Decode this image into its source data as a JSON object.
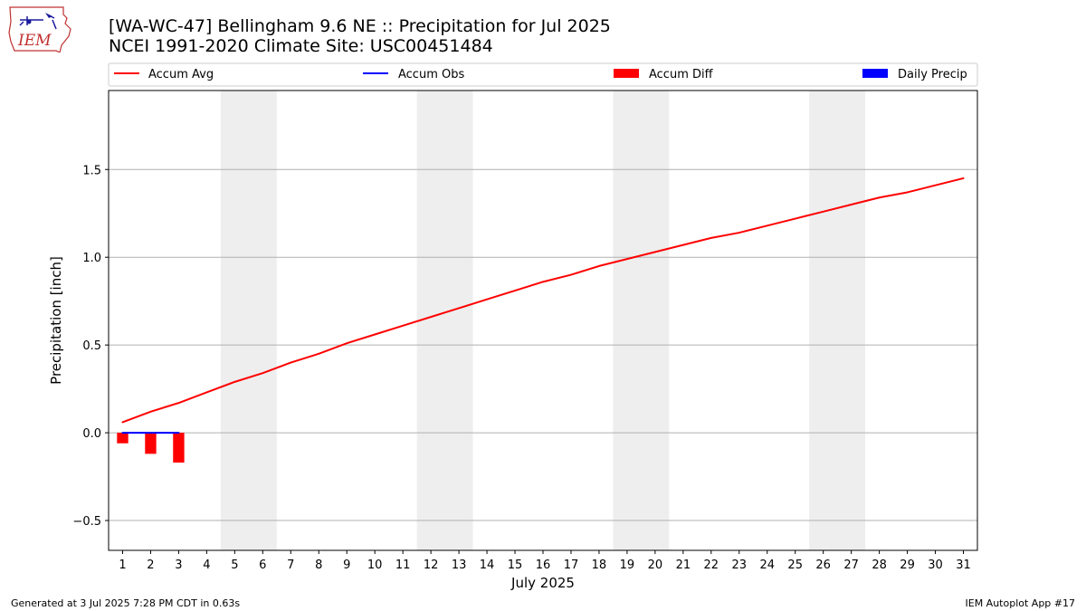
{
  "header": {
    "title_line1": "[WA-WC-47] Bellingham 9.6 NE :: Precipitation for Jul 2025",
    "title_line2": "NCEI 1991-2020 Climate Site: USC00451484",
    "logo_text": "IEM"
  },
  "footer": {
    "generated": "Generated at 3 Jul 2025 7:28 PM CDT in 0.63s",
    "app": "IEM Autoplot App #17"
  },
  "colors": {
    "accum_avg": "#ff0000",
    "accum_obs": "#0000ff",
    "accum_diff": "#ff0000",
    "daily_precip": "#0000ff",
    "weekend_shade": "#eeeeee",
    "grid": "#b0b0b0"
  },
  "chart_data": {
    "type": "line",
    "title": "[WA-WC-47] Bellingham 9.6 NE :: Precipitation for Jul 2025",
    "subtitle": "NCEI 1991-2020 Climate Site: USC00451484",
    "xlabel": "July 2025",
    "ylabel": "Precipitation [inch]",
    "x": [
      1,
      2,
      3,
      4,
      5,
      6,
      7,
      8,
      9,
      10,
      11,
      12,
      13,
      14,
      15,
      16,
      17,
      18,
      19,
      20,
      21,
      22,
      23,
      24,
      25,
      26,
      27,
      28,
      29,
      30,
      31
    ],
    "xlim": [
      0.5,
      31.5
    ],
    "ylim": [
      -0.67,
      1.95
    ],
    "yticks": [
      -0.5,
      0.0,
      0.5,
      1.0,
      1.5
    ],
    "ytick_labels": [
      "−0.5",
      "0.0",
      "0.5",
      "1.0",
      "1.5"
    ],
    "grid": "horizontal",
    "legend_position": "top",
    "weekend_bands": [
      [
        4.5,
        6.5
      ],
      [
        11.5,
        13.5
      ],
      [
        18.5,
        20.5
      ],
      [
        25.5,
        27.5
      ]
    ],
    "series": [
      {
        "name": "Accum Avg",
        "kind": "line",
        "x": [
          1,
          2,
          3,
          4,
          5,
          6,
          7,
          8,
          9,
          10,
          11,
          12,
          13,
          14,
          15,
          16,
          17,
          18,
          19,
          20,
          21,
          22,
          23,
          24,
          25,
          26,
          27,
          28,
          29,
          30,
          31
        ],
        "values": [
          0.06,
          0.12,
          0.17,
          0.23,
          0.29,
          0.34,
          0.4,
          0.45,
          0.51,
          0.56,
          0.61,
          0.66,
          0.71,
          0.76,
          0.81,
          0.86,
          0.9,
          0.95,
          0.99,
          1.03,
          1.07,
          1.11,
          1.14,
          1.18,
          1.22,
          1.26,
          1.3,
          1.34,
          1.37,
          1.41,
          1.45
        ]
      },
      {
        "name": "Accum Obs",
        "kind": "line",
        "x": [
          1,
          2,
          3
        ],
        "values": [
          0.0,
          0.0,
          0.0
        ]
      },
      {
        "name": "Accum Diff",
        "kind": "bar",
        "x": [
          1,
          2,
          3
        ],
        "values": [
          -0.06,
          -0.12,
          -0.17
        ]
      },
      {
        "name": "Daily Precip",
        "kind": "bar",
        "x": [
          1,
          2,
          3
        ],
        "values": [
          0.0,
          0.0,
          0.0
        ]
      }
    ]
  }
}
